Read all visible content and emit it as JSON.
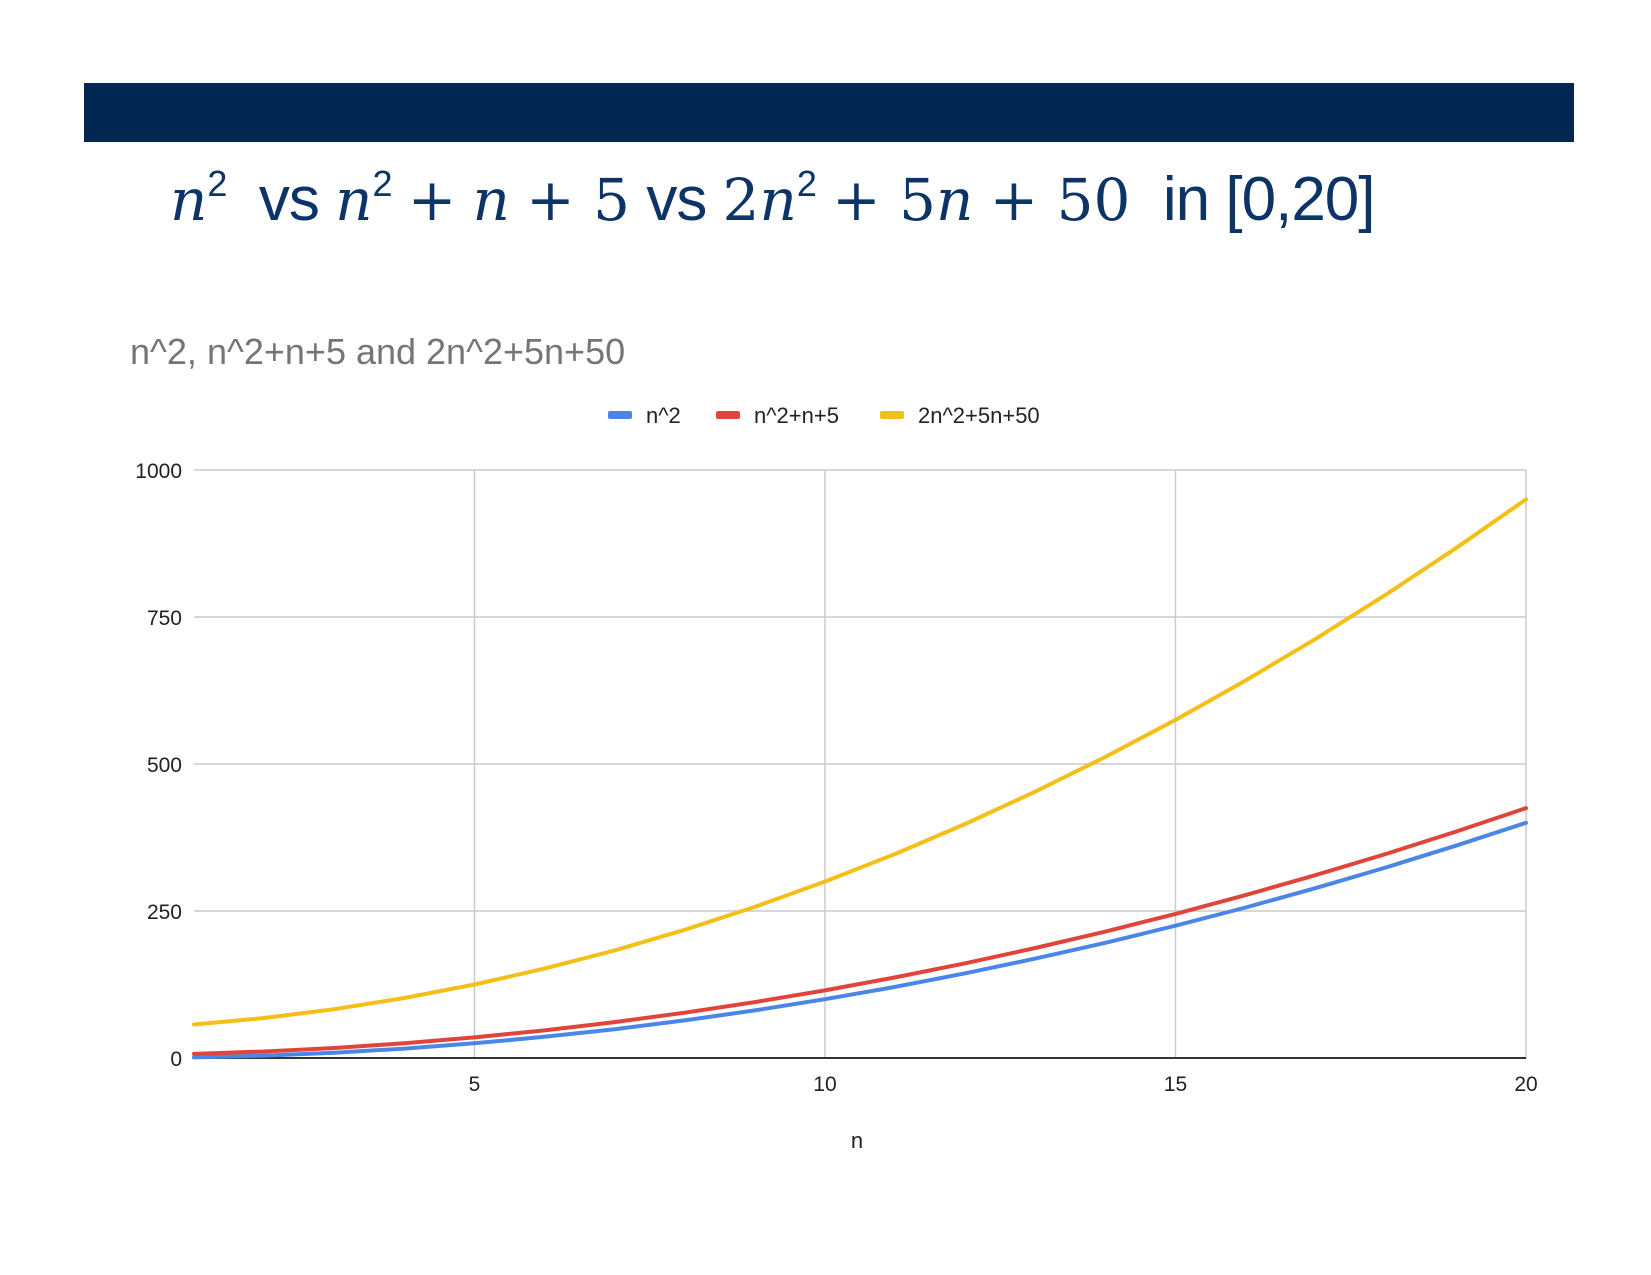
{
  "header": {
    "bar_color": "#022752"
  },
  "slide_title": {
    "t1": "n",
    "t2": "2",
    "t3": "vs",
    "t4": "n",
    "t5": "2",
    "t6": "+",
    "t7": "n",
    "t8": "+ 5",
    "t9": "vs",
    "t10": "2",
    "t11": "n",
    "t12": "2",
    "t13": "+ 5",
    "t14": "n",
    "t15": "+ 50",
    "t16": "in [0,20]"
  },
  "chart_data": {
    "type": "line",
    "title": "n^2, n^2+n+5 and 2n^2+5n+50",
    "xlabel": "n",
    "ylabel": "",
    "xlim": [
      1,
      20
    ],
    "ylim": [
      0,
      1000
    ],
    "x": [
      1,
      2,
      3,
      4,
      5,
      6,
      7,
      8,
      9,
      10,
      11,
      12,
      13,
      14,
      15,
      16,
      17,
      18,
      19,
      20
    ],
    "x_ticks": [
      5,
      10,
      15,
      20
    ],
    "y_ticks": [
      0,
      250,
      500,
      750,
      1000
    ],
    "grid": true,
    "legend_position": "top",
    "series": [
      {
        "name": "n^2",
        "color": "#4a86e8",
        "values": [
          1,
          4,
          9,
          16,
          25,
          36,
          49,
          64,
          81,
          100,
          121,
          144,
          169,
          196,
          225,
          256,
          289,
          324,
          361,
          400
        ]
      },
      {
        "name": "n^2+n+5",
        "color": "#e0443a",
        "values": [
          7,
          11,
          17,
          25,
          35,
          47,
          61,
          77,
          95,
          115,
          137,
          161,
          187,
          215,
          245,
          277,
          311,
          347,
          385,
          425
        ]
      },
      {
        "name": "2n^2+5n+50",
        "color": "#f4bf16",
        "values": [
          57,
          68,
          83,
          102,
          125,
          152,
          183,
          218,
          257,
          300,
          347,
          398,
          453,
          512,
          575,
          642,
          713,
          788,
          867,
          950
        ]
      }
    ]
  }
}
